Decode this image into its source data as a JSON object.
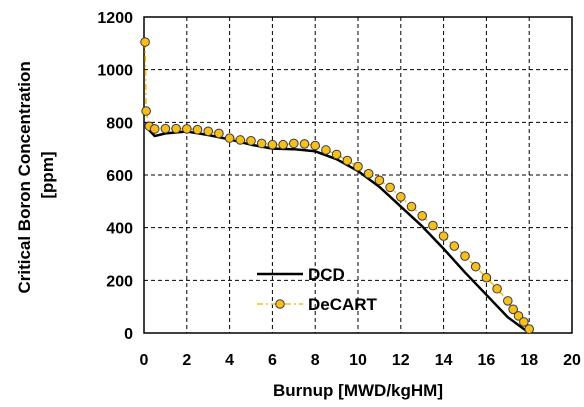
{
  "chart_data": {
    "type": "line",
    "xlabel": "Burnup [MWD/kgHM]",
    "ylabel_lines": [
      "Critical Boron Concentration",
      "[ppm]"
    ],
    "xlim": [
      0,
      20
    ],
    "ylim": [
      0,
      1200
    ],
    "xticks": [
      0,
      2,
      4,
      6,
      8,
      10,
      12,
      14,
      16,
      18,
      20
    ],
    "yticks": [
      0,
      200,
      400,
      600,
      800,
      1000,
      1200
    ],
    "grid": true,
    "legend_position": "bottom-left",
    "series": [
      {
        "name": "DCD",
        "color": "#000000",
        "style": "solid",
        "x": [
          0.1,
          0.25,
          0.5,
          1,
          2,
          3,
          4,
          5,
          6,
          7,
          8,
          9,
          10,
          11,
          12,
          13,
          14,
          15,
          16,
          17,
          18
        ],
        "y": [
          800,
          770,
          748,
          758,
          765,
          752,
          735,
          715,
          700,
          698,
          690,
          660,
          615,
          555,
          480,
          405,
          320,
          230,
          145,
          60,
          0
        ]
      },
      {
        "name": "DeCART",
        "color": "#F6BF1D",
        "marker_edge": "#3A3A3A",
        "style": "dash-dot",
        "x": [
          0.05,
          0.1,
          0.25,
          0.5,
          1,
          1.5,
          2,
          2.5,
          3,
          3.5,
          4,
          4.5,
          5,
          5.5,
          6,
          6.5,
          7,
          7.5,
          8,
          8.5,
          9,
          9.5,
          10,
          10.5,
          11,
          11.5,
          12,
          12.5,
          13,
          13.5,
          14,
          14.5,
          15,
          15.5,
          16,
          16.5,
          17,
          17.25,
          17.5,
          17.75,
          18
        ],
        "y": [
          1105,
          843,
          785,
          775,
          776,
          776,
          775,
          772,
          766,
          758,
          740,
          733,
          730,
          720,
          715,
          715,
          720,
          718,
          712,
          695,
          678,
          655,
          632,
          605,
          580,
          553,
          517,
          480,
          445,
          408,
          368,
          330,
          292,
          252,
          210,
          168,
          122,
          90,
          65,
          42,
          15
        ]
      }
    ]
  }
}
